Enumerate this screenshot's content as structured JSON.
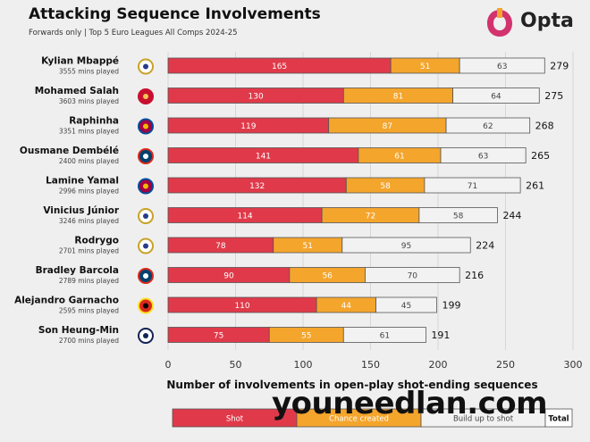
{
  "header": {
    "title": "Attacking Sequence Involvements",
    "subtitle": "Forwards only | Top 5 Euro Leagues All Comps 2024-25",
    "brand_name": "Opta"
  },
  "watermark": "youneedlan.com",
  "colors": {
    "shot": "#e03a4a",
    "chance_created": "#f4a52c",
    "build_up": "#f2f2f2",
    "background": "#efefef"
  },
  "chart_data": {
    "type": "bar",
    "orientation": "horizontal",
    "stacked": true,
    "xlabel": "Number of involvements in open-play shot-ending sequences",
    "xlim": [
      0,
      300
    ],
    "xticks": [
      0,
      50,
      100,
      150,
      200,
      250,
      300
    ],
    "grid": true,
    "legend_position": "bottom",
    "legend": [
      "Shot",
      "Chance created",
      "Build up to shot",
      "Total"
    ],
    "players": [
      {
        "name": "Kylian Mbappé",
        "mins": "3555 mins played",
        "club_icon": "real-madrid-crest-icon"
      },
      {
        "name": "Mohamed Salah",
        "mins": "3603 mins played",
        "club_icon": "liverpool-crest-icon"
      },
      {
        "name": "Raphinha",
        "mins": "3351 mins played",
        "club_icon": "barcelona-crest-icon"
      },
      {
        "name": "Ousmane Dembélé",
        "mins": "2400 mins played",
        "club_icon": "psg-crest-icon"
      },
      {
        "name": "Lamine Yamal",
        "mins": "2996 mins played",
        "club_icon": "barcelona-crest-icon"
      },
      {
        "name": "Vinicius Júnior",
        "mins": "3246 mins played",
        "club_icon": "real-madrid-crest-icon"
      },
      {
        "name": "Rodrygo",
        "mins": "2701 mins played",
        "club_icon": "real-madrid-crest-icon"
      },
      {
        "name": "Bradley Barcola",
        "mins": "2789 mins played",
        "club_icon": "psg-crest-icon"
      },
      {
        "name": "Alejandro Garnacho",
        "mins": "2595 mins played",
        "club_icon": "man-united-crest-icon"
      },
      {
        "name": "Son Heung-Min",
        "mins": "2700 mins played",
        "club_icon": "tottenham-crest-icon"
      }
    ],
    "series": [
      {
        "name": "Shot",
        "values": [
          165,
          130,
          119,
          141,
          132,
          114,
          78,
          90,
          110,
          75
        ]
      },
      {
        "name": "Chance created",
        "values": [
          51,
          81,
          87,
          61,
          58,
          72,
          51,
          56,
          44,
          55
        ]
      },
      {
        "name": "Build up to shot",
        "values": [
          63,
          64,
          62,
          63,
          71,
          58,
          95,
          70,
          45,
          61
        ]
      }
    ],
    "totals": [
      279,
      275,
      268,
      265,
      261,
      244,
      224,
      216,
      199,
      191
    ]
  }
}
